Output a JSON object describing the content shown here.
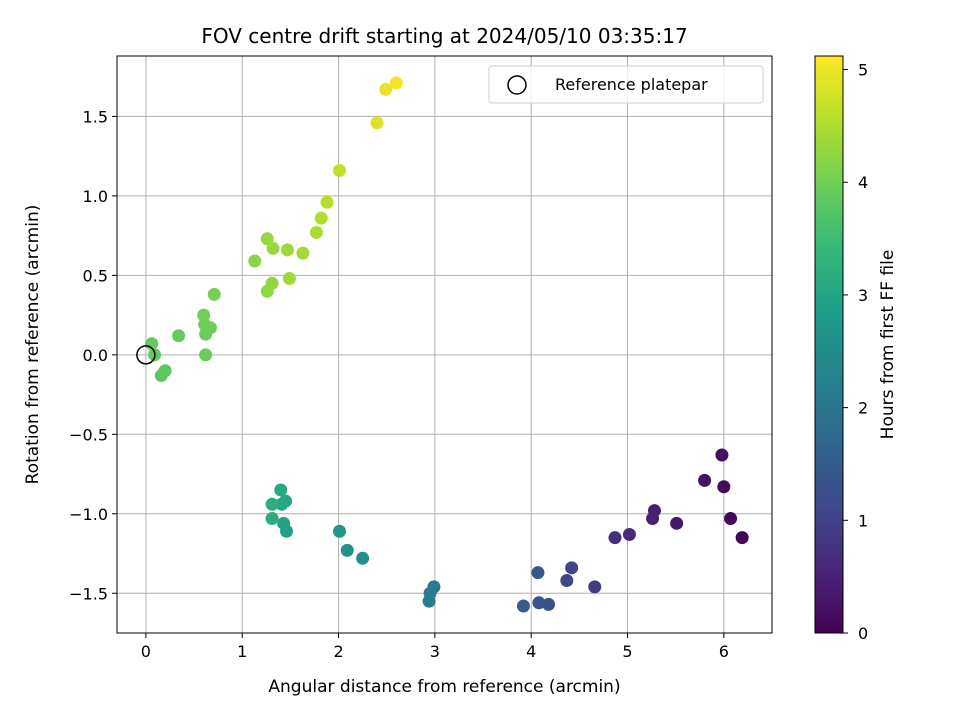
{
  "chart_data": {
    "type": "scatter",
    "title": "FOV centre drift starting at 2024/05/10 03:35:17",
    "xlabel": "Angular distance from reference (arcmin)",
    "ylabel": "Rotation from reference (arcmin)",
    "xlim": [
      -0.3,
      6.5
    ],
    "ylim": [
      -1.75,
      1.88
    ],
    "x_ticks": [
      0,
      1,
      2,
      3,
      4,
      5,
      6
    ],
    "y_ticks": [
      -1.5,
      -1.0,
      -0.5,
      0.0,
      0.5,
      1.0,
      1.5
    ],
    "x_tick_labels": [
      "0",
      "1",
      "2",
      "3",
      "4",
      "5",
      "6"
    ],
    "y_tick_labels": [
      "−1.5",
      "−1.0",
      "−0.5",
      "0.0",
      "0.5",
      "1.0",
      "1.5"
    ],
    "grid": true,
    "legend": {
      "position": "top-right",
      "entries": [
        "Reference platepar"
      ]
    },
    "reference_point": {
      "x": 0,
      "y": 0
    },
    "colorbar": {
      "label": "Hours from first FF file",
      "range": [
        0,
        5.12
      ],
      "ticks": [
        0,
        1,
        2,
        3,
        4,
        5
      ],
      "tick_labels": [
        "0",
        "1",
        "2",
        "3",
        "4",
        "5"
      ],
      "colormap": "viridis"
    },
    "points": [
      {
        "x": 6.19,
        "y": -1.15,
        "hours": 0.05
      },
      {
        "x": 6.07,
        "y": -1.03,
        "hours": 0.1
      },
      {
        "x": 6.0,
        "y": -0.83,
        "hours": 0.15
      },
      {
        "x": 5.98,
        "y": -0.63,
        "hours": 0.2
      },
      {
        "x": 5.8,
        "y": -0.79,
        "hours": 0.25
      },
      {
        "x": 5.51,
        "y": -1.06,
        "hours": 0.35
      },
      {
        "x": 5.28,
        "y": -0.98,
        "hours": 0.45
      },
      {
        "x": 5.26,
        "y": -1.03,
        "hours": 0.5
      },
      {
        "x": 5.02,
        "y": -1.13,
        "hours": 0.6
      },
      {
        "x": 4.87,
        "y": -1.15,
        "hours": 0.7
      },
      {
        "x": 4.66,
        "y": -1.46,
        "hours": 0.9
      },
      {
        "x": 4.42,
        "y": -1.34,
        "hours": 1.05
      },
      {
        "x": 4.37,
        "y": -1.42,
        "hours": 1.1
      },
      {
        "x": 4.18,
        "y": -1.57,
        "hours": 1.25
      },
      {
        "x": 4.08,
        "y": -1.56,
        "hours": 1.35
      },
      {
        "x": 4.07,
        "y": -1.37,
        "hours": 1.4
      },
      {
        "x": 3.92,
        "y": -1.58,
        "hours": 1.5
      },
      {
        "x": 2.99,
        "y": -1.46,
        "hours": 2.1
      },
      {
        "x": 2.95,
        "y": -1.5,
        "hours": 2.15
      },
      {
        "x": 2.94,
        "y": -1.55,
        "hours": 2.2
      },
      {
        "x": 2.25,
        "y": -1.28,
        "hours": 2.5
      },
      {
        "x": 2.09,
        "y": -1.23,
        "hours": 2.6
      },
      {
        "x": 2.01,
        "y": -1.11,
        "hours": 2.7
      },
      {
        "x": 1.46,
        "y": -1.11,
        "hours": 2.9
      },
      {
        "x": 1.43,
        "y": -1.06,
        "hours": 2.95
      },
      {
        "x": 1.45,
        "y": -0.92,
        "hours": 3.0
      },
      {
        "x": 1.41,
        "y": -0.94,
        "hours": 3.05
      },
      {
        "x": 1.4,
        "y": -0.85,
        "hours": 3.1
      },
      {
        "x": 1.31,
        "y": -1.03,
        "hours": 3.15
      },
      {
        "x": 1.31,
        "y": -0.94,
        "hours": 3.2
      },
      {
        "x": 0.2,
        "y": -0.1,
        "hours": 3.8
      },
      {
        "x": 0.16,
        "y": -0.13,
        "hours": 3.82
      },
      {
        "x": 0.09,
        "y": 0.0,
        "hours": 3.85
      },
      {
        "x": 0.06,
        "y": 0.07,
        "hours": 3.88
      },
      {
        "x": 0.34,
        "y": 0.12,
        "hours": 3.9
      },
      {
        "x": 0.62,
        "y": 0.0,
        "hours": 3.92
      },
      {
        "x": 0.62,
        "y": 0.13,
        "hours": 3.94
      },
      {
        "x": 0.67,
        "y": 0.17,
        "hours": 3.96
      },
      {
        "x": 0.61,
        "y": 0.19,
        "hours": 3.98
      },
      {
        "x": 0.6,
        "y": 0.25,
        "hours": 4.0
      },
      {
        "x": 0.71,
        "y": 0.38,
        "hours": 4.05
      },
      {
        "x": 1.13,
        "y": 0.59,
        "hours": 4.2
      },
      {
        "x": 1.26,
        "y": 0.4,
        "hours": 4.25
      },
      {
        "x": 1.31,
        "y": 0.45,
        "hours": 4.28
      },
      {
        "x": 1.26,
        "y": 0.73,
        "hours": 4.3
      },
      {
        "x": 1.32,
        "y": 0.67,
        "hours": 4.33
      },
      {
        "x": 1.47,
        "y": 0.66,
        "hours": 4.36
      },
      {
        "x": 1.49,
        "y": 0.48,
        "hours": 4.38
      },
      {
        "x": 1.63,
        "y": 0.64,
        "hours": 4.42
      },
      {
        "x": 1.77,
        "y": 0.77,
        "hours": 4.48
      },
      {
        "x": 1.82,
        "y": 0.86,
        "hours": 4.52
      },
      {
        "x": 1.88,
        "y": 0.96,
        "hours": 4.56
      },
      {
        "x": 2.01,
        "y": 1.16,
        "hours": 4.65
      },
      {
        "x": 2.4,
        "y": 1.46,
        "hours": 4.85
      },
      {
        "x": 2.49,
        "y": 1.67,
        "hours": 4.95
      },
      {
        "x": 2.6,
        "y": 1.71,
        "hours": 5.05
      }
    ]
  }
}
